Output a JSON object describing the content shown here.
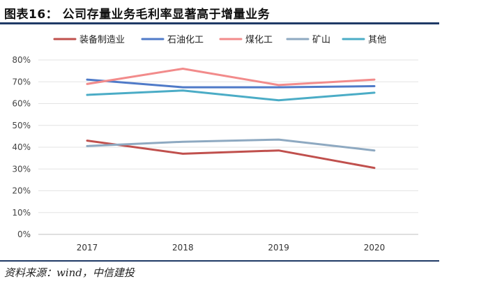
{
  "header": {
    "title": "图表16： 公司存量业务毛利率显著高于增量业务"
  },
  "footer": {
    "source": "资料来源：wind，中信建投"
  },
  "chart_data": {
    "type": "line",
    "title": "图表16： 公司存量业务毛利率显著高于增量业务",
    "x": [
      "2017",
      "2018",
      "2019",
      "2020"
    ],
    "ylim": [
      0,
      80
    ],
    "yticks": [
      "0%",
      "10%",
      "20%",
      "30%",
      "40%",
      "50%",
      "60%",
      "70%",
      "80%"
    ],
    "grid": true,
    "legend_position": "top",
    "series": [
      {
        "name": "装备制造业",
        "color": "#c0504d",
        "values": [
          43,
          37,
          38.5,
          30.5
        ]
      },
      {
        "name": "石油化工",
        "color": "#4f7ac8",
        "values": [
          71,
          67.5,
          67.5,
          68
        ]
      },
      {
        "name": "煤化工",
        "color": "#f28b8b",
        "values": [
          69,
          76,
          68.5,
          71
        ]
      },
      {
        "name": "矿山",
        "color": "#8ea9c1",
        "values": [
          40.5,
          42.5,
          43.5,
          38.5
        ]
      },
      {
        "name": "其他",
        "color": "#4bacc6",
        "values": [
          64,
          66,
          61.5,
          65
        ]
      }
    ]
  }
}
